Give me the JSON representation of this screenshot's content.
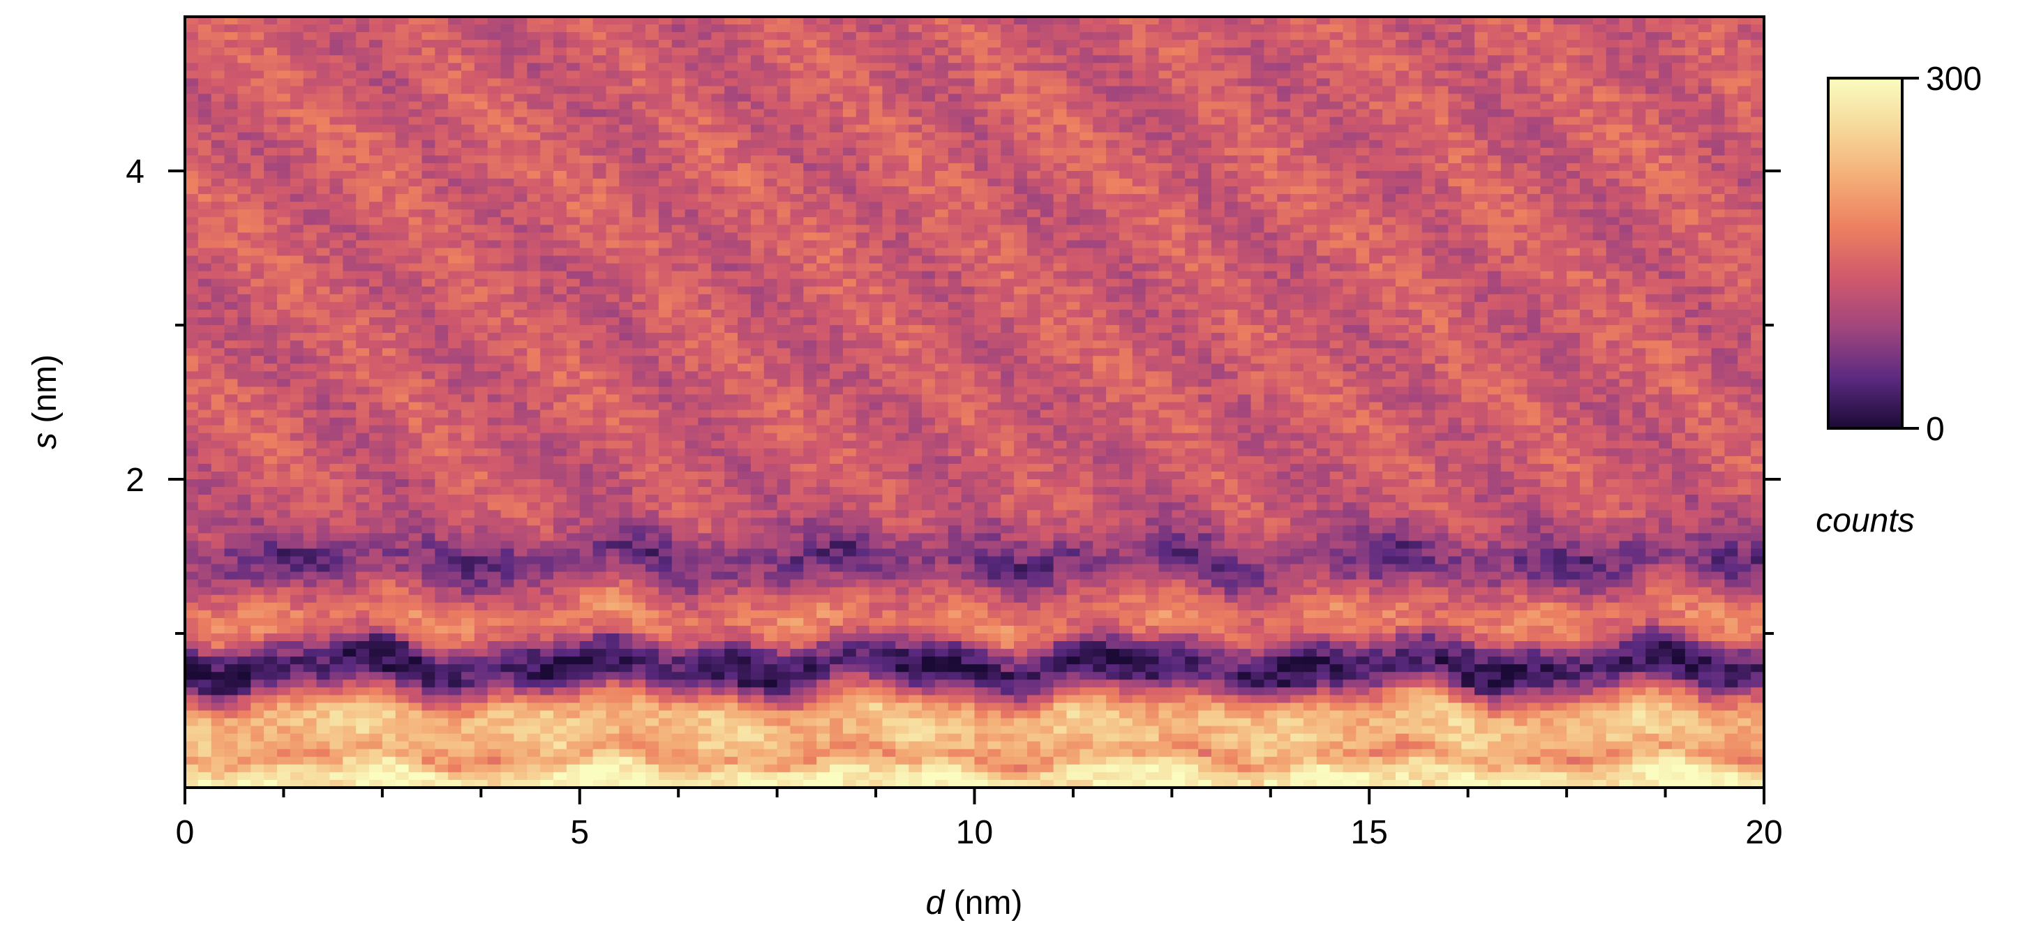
{
  "chart_data": {
    "type": "heatmap",
    "title": "",
    "xlabel": {
      "var": "d",
      "unit": " (nm)"
    },
    "ylabel": {
      "var": "s",
      "unit": " (nm)"
    },
    "xlim": [
      0,
      20
    ],
    "ylim": [
      0,
      5
    ],
    "x_ticks": [
      0,
      5,
      10,
      15,
      20
    ],
    "x_tick_labels": [
      "0",
      "5",
      "10",
      "15",
      "20"
    ],
    "y_ticks": [
      2,
      4
    ],
    "y_tick_labels": [
      "2",
      "4"
    ],
    "colorbar": {
      "label": "counts",
      "min": 0,
      "max": 300,
      "tick_labels": [
        "300",
        "0"
      ],
      "colormap": "magma",
      "colors": [
        "#1b0a35",
        "#5b2a80",
        "#a0457e",
        "#d0596c",
        "#ec7f60",
        "#f4ad77",
        "#f6d89a",
        "#fafcc0"
      ]
    },
    "intensity_profile_vs_s": {
      "description_units": "s in nm, counts",
      "s": [
        0.0,
        0.1,
        0.2,
        0.3,
        0.4,
        0.5,
        0.6,
        0.7,
        0.8,
        0.9,
        1.0,
        1.1,
        1.2,
        1.3,
        1.4,
        1.5,
        1.6,
        1.7,
        1.8,
        2.0,
        2.5,
        3.0,
        3.5,
        4.0,
        4.5,
        5.0
      ],
      "counts": [
        290,
        275,
        190,
        230,
        235,
        220,
        140,
        40,
        20,
        60,
        150,
        170,
        150,
        110,
        70,
        60,
        85,
        110,
        120,
        125,
        130,
        128,
        130,
        132,
        130,
        128
      ]
    }
  }
}
